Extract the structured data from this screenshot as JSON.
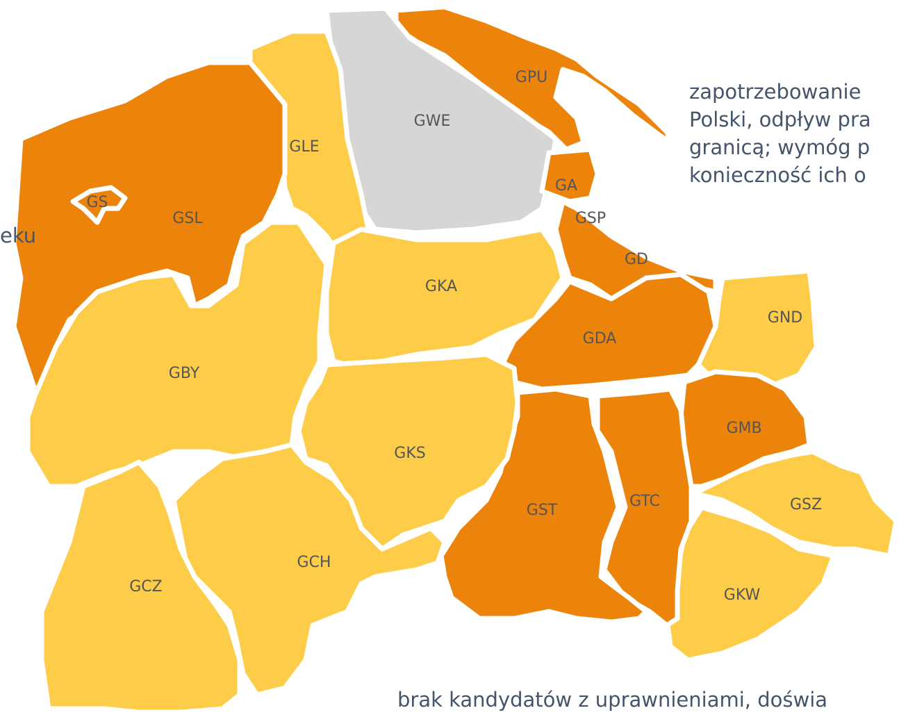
{
  "regions": [
    {
      "label": "GPU",
      "fill": "#ec840c"
    },
    {
      "label": "GWE",
      "fill": "#d6d6d6"
    },
    {
      "label": "GA",
      "fill": "#ec840c"
    },
    {
      "label": "GLE",
      "fill": "#fdcd4a"
    },
    {
      "label": "GSL",
      "fill": "#ec840c"
    },
    {
      "label": "GS",
      "fill": "#ec840c"
    },
    {
      "label": "GBY",
      "fill": "#fdcd4a"
    },
    {
      "label": "GKA",
      "fill": "#fdcd4a"
    },
    {
      "label": "GSP",
      "fill": "#ec840c"
    },
    {
      "label": "GD",
      "fill": "#ec840c"
    },
    {
      "label": "GDA",
      "fill": "#ec840c"
    },
    {
      "label": "GND",
      "fill": "#fdcd4a"
    },
    {
      "label": "GMB",
      "fill": "#ec840c"
    },
    {
      "label": "GSZ",
      "fill": "#fdcd4a"
    },
    {
      "label": "GKW",
      "fill": "#fdcd4a"
    },
    {
      "label": "GTC",
      "fill": "#ec840c"
    },
    {
      "label": "GST",
      "fill": "#ec840c"
    },
    {
      "label": "GKS",
      "fill": "#fdcd4a"
    },
    {
      "label": "GCH",
      "fill": "#fdcd4a"
    },
    {
      "label": "GCZ",
      "fill": "#fdcd4a"
    }
  ],
  "notes": {
    "right": [
      "zapotrzebowanie",
      "Polski, odpływ pra",
      "granicą; wymóg p",
      "konieczność ich o"
    ],
    "left": "eku",
    "bottom": "brak kandydatów z uprawnieniami, doświa"
  }
}
